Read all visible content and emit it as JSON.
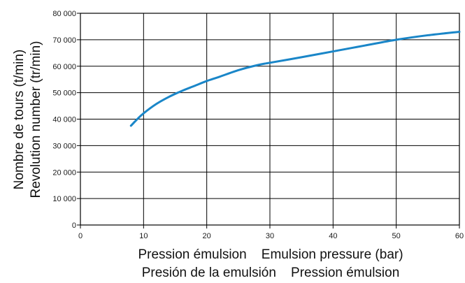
{
  "chart_data": {
    "type": "line",
    "ylabel_lines": [
      "Nombre de tours (t/min)",
      "Revolution number (tr/min)"
    ],
    "xlabel_lines": [
      "Pression émulsion    Emulsion pressure (bar)",
      "Presión de la emulsión    Pression émulsion"
    ],
    "x_ticks": [
      "0",
      "10",
      "20",
      "30",
      "40",
      "50",
      "60"
    ],
    "y_ticks": [
      "0",
      "10 000",
      "20 000",
      "30 000",
      "40 000",
      "50 000",
      "60 000",
      "70 000",
      "80 000"
    ],
    "xlim": [
      0,
      60
    ],
    "ylim": [
      0,
      80000
    ],
    "grid": true,
    "line_color": "#1a86c8",
    "series": [
      {
        "x": [
          8,
          9,
          10,
          12,
          14,
          16,
          18,
          20,
          22,
          25,
          28,
          30,
          35,
          40,
          45,
          50,
          55,
          60
        ],
        "y": [
          37500,
          40000,
          42200,
          45700,
          48400,
          50600,
          52500,
          54400,
          56000,
          58500,
          60400,
          61300,
          63400,
          65600,
          67800,
          70000,
          71700,
          73000
        ]
      }
    ]
  }
}
